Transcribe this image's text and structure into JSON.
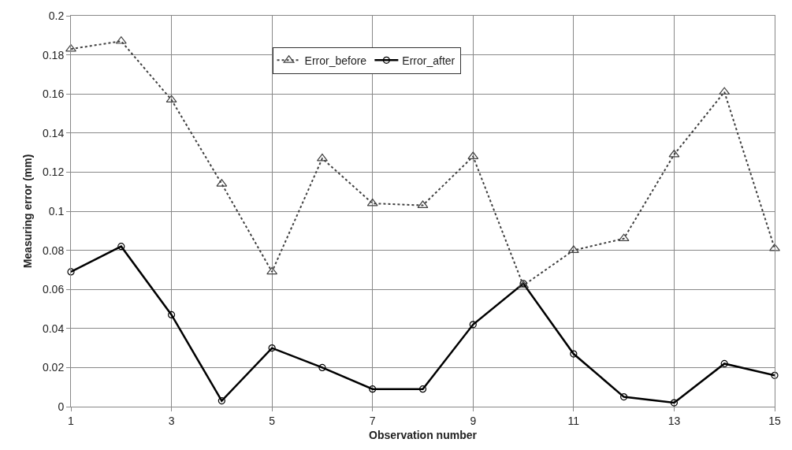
{
  "chart_data": {
    "type": "line",
    "xlabel": "Observation number",
    "ylabel": "Measuring error (mm)",
    "x": [
      1,
      2,
      3,
      4,
      5,
      6,
      7,
      8,
      9,
      10,
      11,
      12,
      13,
      14,
      15
    ],
    "series": [
      {
        "name": "Error_before",
        "color": "#404040",
        "marker": "triangle",
        "line_style": "dotted",
        "values": [
          0.183,
          0.187,
          0.157,
          0.114,
          0.069,
          0.127,
          0.104,
          0.103,
          0.128,
          0.062,
          0.08,
          0.086,
          0.129,
          0.161,
          0.081
        ]
      },
      {
        "name": "Error_after",
        "color": "#000000",
        "marker": "circle",
        "line_style": "solid",
        "values": [
          0.069,
          0.082,
          0.047,
          0.003,
          0.03,
          0.02,
          0.009,
          0.009,
          0.042,
          0.063,
          0.027,
          0.005,
          0.002,
          0.022,
          0.016
        ]
      }
    ],
    "xlim": [
      1,
      15
    ],
    "xticks": [
      1,
      3,
      5,
      7,
      9,
      11,
      13,
      15
    ],
    "ylim": [
      0,
      0.2
    ],
    "yticks": [
      0,
      0.02,
      0.04,
      0.06,
      0.08,
      0.1,
      0.12,
      0.14,
      0.16,
      0.18,
      0.2
    ],
    "grid": true,
    "legend": "top"
  }
}
